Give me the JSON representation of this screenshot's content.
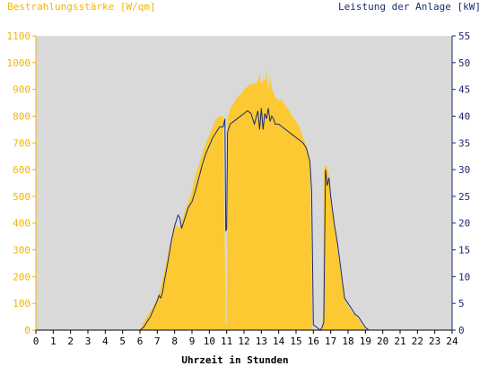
{
  "chart_data": {
    "type": "area",
    "left_axis_label": "Bestrahlungsstärke [W/qm]",
    "right_axis_label": "Leistung der Anlage [kW]",
    "xlabel": "Uhrzeit in Stunden",
    "xlim": [
      0,
      24
    ],
    "ylim_left": [
      0,
      1100
    ],
    "ylim_right": [
      0,
      55
    ],
    "x_ticks": [
      0,
      1,
      2,
      3,
      4,
      5,
      6,
      7,
      8,
      9,
      10,
      11,
      12,
      13,
      14,
      15,
      16,
      17,
      18,
      19,
      20,
      21,
      22,
      23,
      24
    ],
    "y_ticks_left": [
      0,
      100,
      200,
      300,
      400,
      500,
      600,
      700,
      800,
      900,
      1000,
      1100
    ],
    "y_ticks_right": [
      0,
      5,
      10,
      15,
      20,
      25,
      30,
      35,
      40,
      45,
      50,
      55
    ],
    "grid": false,
    "colors": {
      "plot_background": "#d9d9d9",
      "irradiance_fill": "#fdc933",
      "power_line": "#1c2b6e",
      "left_axis_text": "#f2b400",
      "right_axis_text": "#1c2b6e",
      "x_axis_text": "#000000"
    },
    "series": [
      {
        "axis": "left",
        "kind": "area",
        "x": [
          0,
          6.0,
          6.2,
          6.4,
          6.6,
          6.8,
          7.0,
          7.2,
          7.4,
          7.6,
          7.8,
          8.0,
          8.2,
          8.4,
          8.6,
          8.8,
          9.0,
          9.2,
          9.4,
          9.6,
          9.8,
          10.0,
          10.2,
          10.4,
          10.6,
          10.8,
          10.95,
          11.0,
          11.05,
          11.2,
          11.4,
          11.6,
          11.8,
          12.0,
          12.2,
          12.4,
          12.6,
          12.8,
          12.9,
          13.0,
          13.1,
          13.2,
          13.3,
          13.4,
          13.5,
          13.6,
          13.7,
          13.8,
          14.0,
          14.2,
          14.4,
          14.6,
          14.8,
          15.0,
          15.2,
          15.4,
          15.6,
          15.8,
          15.95,
          16.0,
          16.1,
          16.2,
          16.4,
          16.5,
          16.55,
          16.6,
          16.7,
          16.8,
          16.9,
          17.0,
          17.2,
          17.4,
          17.6,
          17.8,
          18.0,
          18.2,
          18.4,
          18.6,
          18.8,
          19.0,
          19.2,
          24
        ],
        "values": [
          0,
          0,
          30,
          50,
          70,
          90,
          120,
          160,
          220,
          280,
          340,
          400,
          380,
          400,
          450,
          480,
          520,
          580,
          620,
          660,
          700,
          730,
          760,
          790,
          800,
          800,
          20,
          20,
          790,
          830,
          850,
          870,
          880,
          900,
          910,
          920,
          920,
          930,
          960,
          920,
          940,
          930,
          970,
          900,
          950,
          900,
          890,
          870,
          860,
          860,
          840,
          820,
          800,
          780,
          760,
          720,
          690,
          640,
          0,
          0,
          0,
          0,
          0,
          0,
          60,
          600,
          620,
          610,
          580,
          480,
          400,
          300,
          200,
          120,
          90,
          70,
          60,
          40,
          20,
          5,
          0,
          0
        ]
      },
      {
        "axis": "right",
        "kind": "line",
        "x": [
          0,
          6.0,
          6.2,
          6.4,
          6.6,
          6.8,
          7.0,
          7.1,
          7.2,
          7.3,
          7.4,
          7.6,
          7.8,
          8.0,
          8.2,
          8.3,
          8.4,
          8.6,
          8.8,
          9.0,
          9.2,
          9.4,
          9.6,
          9.8,
          10.0,
          10.2,
          10.4,
          10.6,
          10.8,
          10.9,
          10.95,
          11.0,
          11.05,
          11.2,
          11.4,
          11.6,
          11.8,
          12.0,
          12.2,
          12.4,
          12.6,
          12.8,
          12.9,
          13.0,
          13.1,
          13.2,
          13.3,
          13.4,
          13.5,
          13.6,
          13.7,
          13.8,
          14.0,
          14.2,
          14.4,
          14.6,
          14.8,
          15.0,
          15.2,
          15.4,
          15.6,
          15.8,
          15.9,
          16.0,
          16.2,
          16.4,
          16.5,
          16.6,
          16.7,
          16.8,
          16.9,
          17.0,
          17.2,
          17.4,
          17.6,
          17.8,
          18.0,
          18.2,
          18.4,
          18.6,
          18.8,
          19.0,
          19.2,
          24
        ],
        "values": [
          0,
          0,
          0.5,
          1.5,
          2.5,
          4,
          5.5,
          6.5,
          6,
          7,
          9,
          12.5,
          16.5,
          19.5,
          21.5,
          21,
          19,
          21,
          23,
          24,
          26,
          28.5,
          31,
          33,
          34.5,
          36,
          37,
          38,
          38,
          39.5,
          18.5,
          19,
          37,
          38.5,
          39,
          39.5,
          40,
          40.5,
          41,
          40.5,
          38.5,
          41,
          37.5,
          41.5,
          37.5,
          40.5,
          39.5,
          41.5,
          39,
          40,
          39.5,
          38.5,
          38.5,
          38,
          37.5,
          37,
          36.5,
          36,
          35.5,
          35,
          34,
          31.5,
          26,
          1,
          0.5,
          0,
          0.5,
          1.5,
          30,
          27,
          28.5,
          25,
          20,
          16,
          11,
          6,
          5,
          4,
          3,
          2.5,
          1.5,
          0.5,
          0,
          0
        ]
      }
    ]
  }
}
